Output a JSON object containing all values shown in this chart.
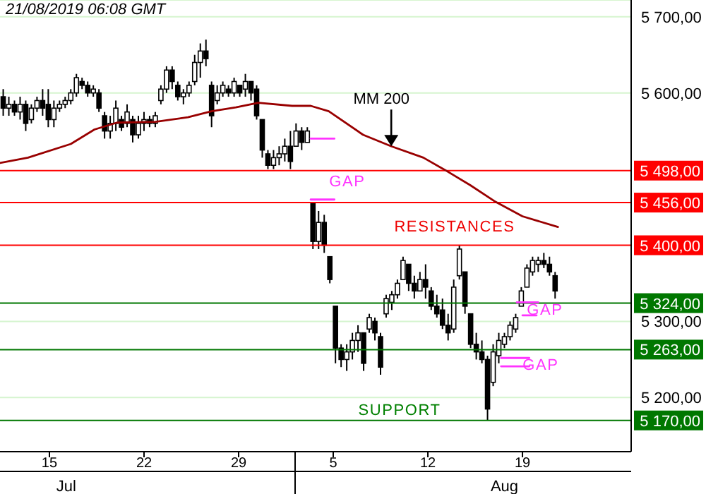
{
  "chart_data": {
    "type": "candlestick",
    "title": "21/08/2019  06:08 GMT",
    "color": "#000000",
    "x": [
      "2019-07-11T14:00",
      "2019-07-12T00:00",
      "2019-07-12T10:00",
      "2019-07-12T20:00",
      "2019-07-13T06:00",
      "2019-07-13T16:00",
      "2019-07-14T02:00",
      "2019-07-14T12:00",
      "2019-07-14T22:00",
      "2019-07-15T08:00",
      "2019-07-15T18:00",
      "2019-07-16T04:00",
      "2019-07-16T14:00",
      "2019-07-17T00:00",
      "2019-07-17T10:00",
      "2019-07-17T20:00",
      "2019-07-18T06:00",
      "2019-07-18T16:00",
      "2019-07-19T02:00",
      "2019-07-19T12:00",
      "2019-07-19T22:00",
      "2019-07-20T08:00",
      "2019-07-20T18:00",
      "2019-07-21T04:00",
      "2019-07-21T14:00",
      "2019-07-22T00:00",
      "2019-07-22T10:00",
      "2019-07-22T20:00",
      "2019-07-23T06:00",
      "2019-07-23T16:00",
      "2019-07-24T02:00",
      "2019-07-24T12:00",
      "2019-07-24T22:00",
      "2019-07-25T08:00",
      "2019-07-25T18:00",
      "2019-07-26T04:00",
      "2019-07-26T14:00",
      "2019-07-27T00:00",
      "2019-07-27T10:00",
      "2019-07-27T20:00",
      "2019-07-28T06:00",
      "2019-07-28T16:00",
      "2019-07-29T02:00",
      "2019-07-29T12:00",
      "2019-07-29T22:00",
      "2019-07-30T08:00",
      "2019-07-30T18:00",
      "2019-07-31T04:00",
      "2019-07-31T14:00",
      "2019-08-01T00:00",
      "2019-08-01T10:00",
      "2019-08-01T20:00",
      "2019-08-02T06:00",
      "2019-08-02T16:00",
      "2019-08-03T02:00",
      "2019-08-03T12:00",
      "2019-08-03T22:00",
      "2019-08-04T08:00",
      "2019-08-04T18:00",
      "2019-08-05T04:00",
      "2019-08-05T14:00",
      "2019-08-06T00:00",
      "2019-08-06T10:00",
      "2019-08-06T20:00",
      "2019-08-07T06:00",
      "2019-08-07T16:00",
      "2019-08-08T02:00",
      "2019-08-08T12:00",
      "2019-08-08T22:00",
      "2019-08-09T08:00",
      "2019-08-09T18:00",
      "2019-08-10T04:00",
      "2019-08-10T14:00",
      "2019-08-11T00:00",
      "2019-08-11T10:00",
      "2019-08-11T20:00",
      "2019-08-12T06:00",
      "2019-08-12T16:00",
      "2019-08-13T02:00",
      "2019-08-13T12:00",
      "2019-08-13T22:00",
      "2019-08-14T08:00",
      "2019-08-14T18:00",
      "2019-08-15T04:00",
      "2019-08-15T14:00",
      "2019-08-16T00:00",
      "2019-08-16T10:00",
      "2019-08-16T20:00",
      "2019-08-17T06:00",
      "2019-08-17T16:00",
      "2019-08-18T02:00",
      "2019-08-18T12:00",
      "2019-08-18T22:00",
      "2019-08-19T08:00",
      "2019-08-19T18:00",
      "2019-08-20T04:00",
      "2019-08-20T14:00",
      "2019-08-21T00:00",
      "2019-08-21T10:00"
    ],
    "ohlc": [
      [
        5595,
        5605,
        5570,
        5580
      ],
      [
        5580,
        5595,
        5570,
        5585
      ],
      [
        5585,
        5590,
        5570,
        5575
      ],
      [
        5575,
        5595,
        5565,
        5585
      ],
      [
        5585,
        5590,
        5550,
        5560
      ],
      [
        5565,
        5585,
        5560,
        5580
      ],
      [
        5580,
        5595,
        5575,
        5590
      ],
      [
        5590,
        5605,
        5570,
        5580
      ],
      [
        5585,
        5605,
        5555,
        5565
      ],
      [
        5565,
        5590,
        5555,
        5580
      ],
      [
        5580,
        5590,
        5575,
        5585
      ],
      [
        5585,
        5595,
        5580,
        5590
      ],
      [
        5590,
        5605,
        5585,
        5600
      ],
      [
        5600,
        5625,
        5595,
        5620
      ],
      [
        5615,
        5620,
        5605,
        5610
      ],
      [
        5610,
        5615,
        5595,
        5600
      ],
      [
        5600,
        5610,
        5595,
        5605
      ],
      [
        5600,
        5605,
        5575,
        5580
      ],
      [
        5570,
        5575,
        5540,
        5550
      ],
      [
        5550,
        5570,
        5540,
        5560
      ],
      [
        5560,
        5590,
        5550,
        5580
      ],
      [
        5565,
        5570,
        5550,
        5555
      ],
      [
        5560,
        5585,
        5555,
        5575
      ],
      [
        5565,
        5570,
        5535,
        5545
      ],
      [
        5545,
        5570,
        5540,
        5560
      ],
      [
        5560,
        5575,
        5550,
        5565
      ],
      [
        5565,
        5570,
        5555,
        5560
      ],
      [
        5560,
        5575,
        5555,
        5570
      ],
      [
        5590,
        5610,
        5585,
        5605
      ],
      [
        5605,
        5635,
        5600,
        5630
      ],
      [
        5630,
        5635,
        5605,
        5615
      ],
      [
        5610,
        5615,
        5590,
        5595
      ],
      [
        5595,
        5605,
        5585,
        5600
      ],
      [
        5600,
        5615,
        5595,
        5610
      ],
      [
        5615,
        5650,
        5610,
        5640
      ],
      [
        5640,
        5665,
        5620,
        5655
      ],
      [
        5655,
        5670,
        5635,
        5645
      ],
      [
        5610,
        5615,
        5555,
        5570
      ],
      [
        5590,
        5610,
        5585,
        5600
      ],
      [
        5600,
        5615,
        5595,
        5610
      ],
      [
        5605,
        5610,
        5595,
        5600
      ],
      [
        5600,
        5620,
        5595,
        5615
      ],
      [
        5610,
        5610,
        5595,
        5600
      ],
      [
        5605,
        5625,
        5595,
        5615
      ],
      [
        5615,
        5615,
        5590,
        5600
      ],
      [
        5605,
        5610,
        5565,
        5570
      ],
      [
        5565,
        5565,
        5515,
        5525
      ],
      [
        5520,
        5525,
        5500,
        5505
      ],
      [
        5505,
        5525,
        5500,
        5515
      ],
      [
        5515,
        5530,
        5505,
        5520
      ],
      [
        5520,
        5540,
        5510,
        5530
      ],
      [
        5530,
        5550,
        5500,
        5510
      ],
      [
        5530,
        5560,
        5530,
        5550
      ],
      [
        5550,
        5555,
        5525,
        5535
      ],
      [
        5535,
        5555,
        5535,
        5550
      ],
      [
        5455,
        5455,
        5395,
        5405
      ],
      [
        5405,
        5445,
        5395,
        5430
      ],
      [
        5430,
        5440,
        5390,
        5400
      ],
      [
        5385,
        5385,
        5350,
        5355
      ],
      [
        5320,
        5320,
        5245,
        5265
      ],
      [
        5265,
        5270,
        5240,
        5250
      ],
      [
        5250,
        5270,
        5235,
        5260
      ],
      [
        5260,
        5285,
        5250,
        5275
      ],
      [
        5275,
        5295,
        5260,
        5285
      ],
      [
        5285,
        5285,
        5235,
        5245
      ],
      [
        5290,
        5310,
        5285,
        5305
      ],
      [
        5300,
        5305,
        5275,
        5285
      ],
      [
        5280,
        5285,
        5230,
        5240
      ],
      [
        5310,
        5335,
        5305,
        5330
      ],
      [
        5325,
        5340,
        5315,
        5335
      ],
      [
        5335,
        5355,
        5330,
        5350
      ],
      [
        5355,
        5385,
        5355,
        5380
      ],
      [
        5375,
        5375,
        5340,
        5350
      ],
      [
        5350,
        5360,
        5330,
        5340
      ],
      [
        5340,
        5365,
        5340,
        5355
      ],
      [
        5355,
        5375,
        5330,
        5345
      ],
      [
        5340,
        5345,
        5315,
        5320
      ],
      [
        5320,
        5335,
        5305,
        5310
      ],
      [
        5315,
        5330,
        5290,
        5295
      ],
      [
        5295,
        5310,
        5275,
        5285
      ],
      [
        5290,
        5355,
        5285,
        5345
      ],
      [
        5360,
        5400,
        5355,
        5395
      ],
      [
        5365,
        5365,
        5310,
        5320
      ],
      [
        5310,
        5310,
        5265,
        5270
      ],
      [
        5270,
        5285,
        5250,
        5260
      ],
      [
        5260,
        5275,
        5245,
        5250
      ],
      [
        5250,
        5255,
        5170,
        5185
      ],
      [
        5220,
        5270,
        5215,
        5260
      ],
      [
        5255,
        5285,
        5245,
        5275
      ],
      [
        5270,
        5285,
        5265,
        5280
      ],
      [
        5280,
        5300,
        5275,
        5295
      ],
      [
        5290,
        5310,
        5285,
        5305
      ],
      [
        5320,
        5345,
        5320,
        5340
      ],
      [
        5345,
        5375,
        5345,
        5370
      ],
      [
        5365,
        5385,
        5360,
        5380
      ],
      [
        5375,
        5385,
        5365,
        5380
      ],
      [
        5380,
        5390,
        5370,
        5375
      ],
      [
        5375,
        5385,
        5360,
        5365
      ],
      [
        5360,
        5365,
        5330,
        5340
      ]
    ],
    "series": [
      {
        "type": "line",
        "color": "#990000",
        "x": [
          "2019-07-11T08:15",
          "2019-07-13T10:00",
          "2019-07-16T14:00",
          "2019-07-18T08:00",
          "2019-07-20T00:00",
          "2019-07-22T20:00",
          "2019-07-25T06:00",
          "2019-07-27T00:00",
          "2019-07-28T19:00",
          "2019-07-30T11:00",
          "2019-08-01T23:00",
          "2019-08-03T08:00",
          "2019-08-04T16:00",
          "2019-08-07T05:00",
          "2019-08-09T07:00",
          "2019-08-11T16:00",
          "2019-08-13T06:00",
          "2019-08-15T03:00",
          "2019-08-16T22:00",
          "2019-08-19T00:00",
          "2019-08-21T15:00"
        ],
        "values": [
          5508,
          5515,
          5533,
          5552,
          5561,
          5562,
          5568,
          5576,
          5581,
          5587,
          5583,
          5583,
          5576,
          5545,
          5530,
          5515,
          5499,
          5479,
          5458,
          5438,
          5424
        ]
      },
      {
        "type": "line",
        "color": "#ff33ff",
        "x": [
          "2019-08-03T08:00",
          "2019-08-05T02:00"
        ],
        "values": [
          5540,
          5540
        ]
      },
      {
        "type": "line",
        "color": "#ff33ff",
        "x": [
          "2019-08-03T08:00",
          "2019-08-05T02:00"
        ],
        "values": [
          5460,
          5460
        ]
      },
      {
        "type": "line",
        "color": "#ff33ff",
        "x": [
          "2019-08-18T14:00",
          "2019-08-20T04:00"
        ],
        "values": [
          5325,
          5325
        ]
      },
      {
        "type": "line",
        "color": "#ff33ff",
        "x": [
          "2019-08-19T00:00",
          "2019-08-20T01:00"
        ],
        "values": [
          5308,
          5308
        ]
      },
      {
        "type": "line",
        "color": "#ff33ff",
        "x": [
          "2019-08-17T10:00",
          "2019-08-19T12:00"
        ],
        "values": [
          5252,
          5252
        ]
      },
      {
        "type": "line",
        "color": "#ff33ff",
        "x": [
          "2019-08-17T10:00",
          "2019-08-19T12:00"
        ],
        "values": [
          5241,
          5241
        ]
      }
    ],
    "ref_lines": [
      {
        "axis": "y",
        "value": 5498,
        "label": "5 498,00",
        "color": "#ff0000"
      },
      {
        "axis": "y",
        "value": 5456,
        "label": "5 456,00",
        "color": "#ff0000"
      },
      {
        "axis": "y",
        "value": 5400,
        "label": "5 400,00",
        "color": "#ff0000"
      },
      {
        "axis": "y",
        "value": 5324,
        "label": "5 324,00",
        "color": "#007700"
      },
      {
        "axis": "y",
        "value": 5263,
        "label": "5 263,00",
        "color": "#007700"
      },
      {
        "axis": "y",
        "value": 5170,
        "label": "5 170,00",
        "color": "#007700"
      }
    ],
    "annotations": [
      {
        "text": "MM 200",
        "x": "2019-08-09T07:00",
        "y": 5530
      },
      "GAP",
      "RESISTANCES",
      "GAP",
      "GAP",
      "SUPPORT"
    ],
    "xlim": [
      "2019-07-11T08:15",
      "2019-08-27T01:00"
    ],
    "xticks": [
      {
        "value": "2019-07-15",
        "label": "15"
      },
      {
        "value": "2019-07-22",
        "label": "22"
      },
      {
        "value": "2019-07-29",
        "label": "29"
      },
      {
        "value": "2019-08-05",
        "label": "5"
      },
      {
        "value": "2019-08-12",
        "label": "12"
      },
      {
        "value": "2019-08-19",
        "label": "19"
      }
    ],
    "x2lim": [
      "2019-07-11T08:15",
      "2019-08-27T01:00"
    ],
    "x2ticks": [
      {
        "value": "2019-07-16T06:00",
        "label": "Jul"
      },
      {
        "value": "2019-08-17T16:00",
        "label": "Aug"
      }
    ],
    "ylim": [
      5129,
      5722
    ],
    "yticks": [
      {
        "value": 5200,
        "label": "5 200,00"
      },
      {
        "value": 5300,
        "label": "5 300,00"
      },
      {
        "value": 5600,
        "label": "5 600,00"
      },
      {
        "value": 5700,
        "label": "5 700,00"
      }
    ],
    "grid": "y"
  }
}
